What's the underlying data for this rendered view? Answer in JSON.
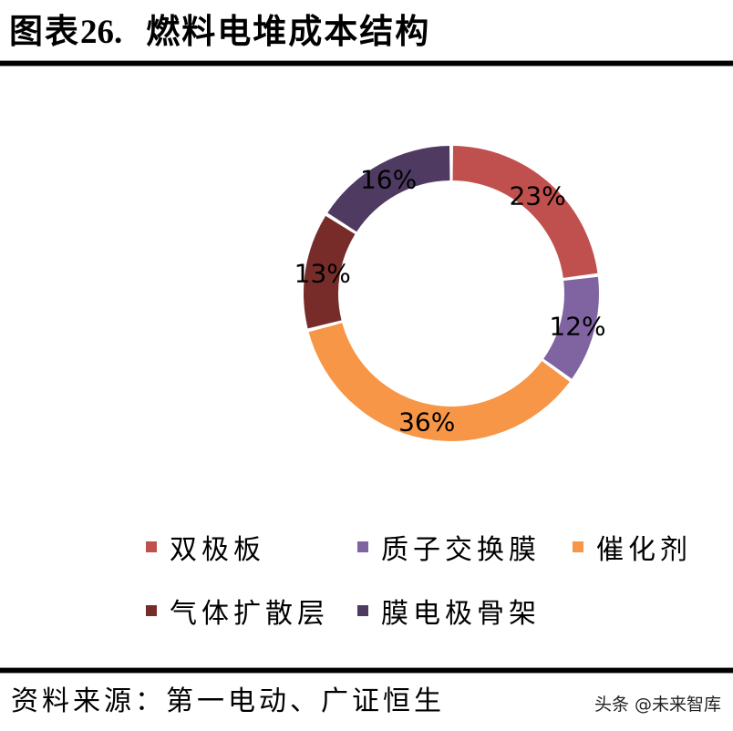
{
  "header": {
    "prefix": "图表",
    "number": "26.",
    "title": "燃料电堆成本结构"
  },
  "chart_data": {
    "type": "pie",
    "subtype": "donut",
    "title": "燃料电堆成本结构",
    "categories": [
      "双极板",
      "质子交换膜",
      "催化剂",
      "气体扩散层",
      "膜电极骨架"
    ],
    "values": [
      23,
      12,
      36,
      13,
      16
    ],
    "labels": [
      "23%",
      "12%",
      "36%",
      "13%",
      "16%"
    ],
    "colors": [
      "#C0504D",
      "#8064A2",
      "#F79646",
      "#772C2A",
      "#4F3B62"
    ],
    "start_angle": "12 o'clock, clockwise",
    "legend_position": "bottom"
  },
  "legend": {
    "items": [
      {
        "label": "双极板",
        "color": "#C0504D"
      },
      {
        "label": "质子交换膜",
        "color": "#8064A2"
      },
      {
        "label": "催化剂",
        "color": "#F79646"
      },
      {
        "label": "气体扩散层",
        "color": "#772C2A"
      },
      {
        "label": "膜电极骨架",
        "color": "#4F3B62"
      }
    ]
  },
  "footer": {
    "source": "资料来源：第一电动、广证恒生",
    "watermark": "头条 @未来智库"
  }
}
